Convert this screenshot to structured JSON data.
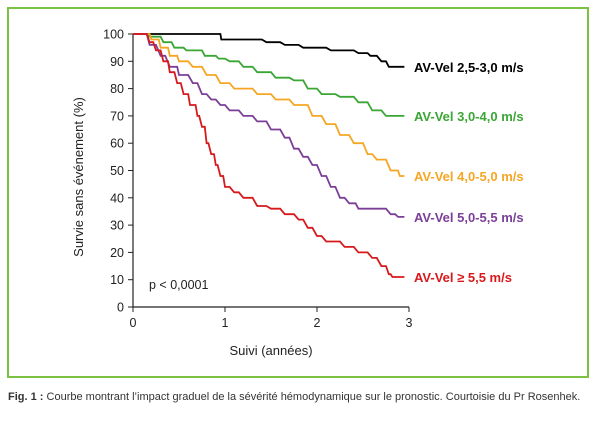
{
  "chart_data": {
    "type": "line",
    "step": true,
    "title": "",
    "xlabel": "Suivi (années)",
    "ylabel": "Survie sans événement (%)",
    "xlim": [
      0,
      3
    ],
    "ylim": [
      0,
      100
    ],
    "xticks": [
      0,
      1,
      2,
      3
    ],
    "yticks": [
      0,
      10,
      20,
      30,
      40,
      50,
      60,
      70,
      80,
      90,
      100
    ],
    "grid": false,
    "annotation": "p < 0,0001",
    "series": [
      {
        "name": "AV-Vel 2,5-3,0 m/s",
        "color": "#000000",
        "points": [
          [
            0,
            100
          ],
          [
            0.95,
            100
          ],
          [
            0.96,
            98
          ],
          [
            1.4,
            98
          ],
          [
            1.45,
            97
          ],
          [
            1.6,
            97
          ],
          [
            1.65,
            96
          ],
          [
            1.8,
            96
          ],
          [
            1.85,
            95
          ],
          [
            2.1,
            95
          ],
          [
            2.15,
            94
          ],
          [
            2.4,
            94
          ],
          [
            2.45,
            93
          ],
          [
            2.55,
            93
          ],
          [
            2.58,
            92
          ],
          [
            2.65,
            92
          ],
          [
            2.7,
            90
          ],
          [
            2.75,
            90
          ],
          [
            2.78,
            88
          ],
          [
            2.95,
            88
          ]
        ]
      },
      {
        "name": "AV-Vel 3,0-4,0 m/s",
        "color": "#3aa635",
        "points": [
          [
            0,
            100
          ],
          [
            0.15,
            100
          ],
          [
            0.18,
            99
          ],
          [
            0.3,
            99
          ],
          [
            0.33,
            97
          ],
          [
            0.42,
            97
          ],
          [
            0.45,
            95
          ],
          [
            0.55,
            95
          ],
          [
            0.58,
            94
          ],
          [
            0.75,
            94
          ],
          [
            0.78,
            92
          ],
          [
            0.9,
            92
          ],
          [
            0.93,
            91
          ],
          [
            1.0,
            91
          ],
          [
            1.05,
            90
          ],
          [
            1.15,
            90
          ],
          [
            1.2,
            88
          ],
          [
            1.3,
            88
          ],
          [
            1.35,
            86
          ],
          [
            1.5,
            86
          ],
          [
            1.55,
            84
          ],
          [
            1.7,
            84
          ],
          [
            1.75,
            83
          ],
          [
            1.85,
            83
          ],
          [
            1.9,
            80
          ],
          [
            2.0,
            80
          ],
          [
            2.05,
            78
          ],
          [
            2.2,
            78
          ],
          [
            2.25,
            77
          ],
          [
            2.4,
            77
          ],
          [
            2.45,
            75
          ],
          [
            2.55,
            75
          ],
          [
            2.6,
            72
          ],
          [
            2.7,
            72
          ],
          [
            2.75,
            70
          ],
          [
            2.95,
            70
          ]
        ]
      },
      {
        "name": "AV-Vel 4,0-5,0 m/s",
        "color": "#f5a623",
        "points": [
          [
            0,
            100
          ],
          [
            0.18,
            100
          ],
          [
            0.2,
            98
          ],
          [
            0.28,
            98
          ],
          [
            0.3,
            95
          ],
          [
            0.38,
            95
          ],
          [
            0.4,
            92
          ],
          [
            0.48,
            92
          ],
          [
            0.5,
            90
          ],
          [
            0.6,
            90
          ],
          [
            0.65,
            88
          ],
          [
            0.75,
            88
          ],
          [
            0.8,
            85
          ],
          [
            0.9,
            85
          ],
          [
            0.95,
            82
          ],
          [
            1.05,
            82
          ],
          [
            1.1,
            80
          ],
          [
            1.3,
            80
          ],
          [
            1.35,
            78
          ],
          [
            1.5,
            78
          ],
          [
            1.55,
            76
          ],
          [
            1.7,
            76
          ],
          [
            1.75,
            74
          ],
          [
            1.9,
            74
          ],
          [
            1.95,
            70
          ],
          [
            2.05,
            70
          ],
          [
            2.1,
            67
          ],
          [
            2.2,
            67
          ],
          [
            2.25,
            63
          ],
          [
            2.35,
            63
          ],
          [
            2.4,
            60
          ],
          [
            2.5,
            60
          ],
          [
            2.55,
            56
          ],
          [
            2.6,
            56
          ],
          [
            2.65,
            54
          ],
          [
            2.75,
            54
          ],
          [
            2.8,
            50
          ],
          [
            2.88,
            50
          ],
          [
            2.9,
            48
          ],
          [
            2.95,
            48
          ]
        ]
      },
      {
        "name": "AV-Vel 5,0-5,5 m/s",
        "color": "#7b3f98",
        "points": [
          [
            0,
            100
          ],
          [
            0.15,
            100
          ],
          [
            0.18,
            96
          ],
          [
            0.25,
            96
          ],
          [
            0.3,
            92
          ],
          [
            0.35,
            92
          ],
          [
            0.4,
            88
          ],
          [
            0.48,
            88
          ],
          [
            0.5,
            85
          ],
          [
            0.6,
            85
          ],
          [
            0.65,
            82
          ],
          [
            0.7,
            82
          ],
          [
            0.75,
            78
          ],
          [
            0.8,
            78
          ],
          [
            0.85,
            76
          ],
          [
            0.9,
            76
          ],
          [
            0.95,
            74
          ],
          [
            1.0,
            74
          ],
          [
            1.05,
            72
          ],
          [
            1.15,
            72
          ],
          [
            1.2,
            70
          ],
          [
            1.3,
            70
          ],
          [
            1.35,
            68
          ],
          [
            1.45,
            68
          ],
          [
            1.5,
            65
          ],
          [
            1.6,
            65
          ],
          [
            1.65,
            62
          ],
          [
            1.7,
            62
          ],
          [
            1.75,
            58
          ],
          [
            1.8,
            58
          ],
          [
            1.85,
            55
          ],
          [
            1.9,
            55
          ],
          [
            1.95,
            52
          ],
          [
            2.0,
            52
          ],
          [
            2.05,
            48
          ],
          [
            2.1,
            48
          ],
          [
            2.15,
            44
          ],
          [
            2.2,
            44
          ],
          [
            2.25,
            40
          ],
          [
            2.3,
            40
          ],
          [
            2.35,
            38
          ],
          [
            2.42,
            38
          ],
          [
            2.45,
            36
          ],
          [
            2.75,
            36
          ],
          [
            2.8,
            34
          ],
          [
            2.85,
            34
          ],
          [
            2.88,
            33
          ],
          [
            2.95,
            33
          ]
        ]
      },
      {
        "name": "AV-Vel ≥ 5,5 m/s",
        "color": "#d7191c",
        "points": [
          [
            0,
            100
          ],
          [
            0.15,
            100
          ],
          [
            0.18,
            97
          ],
          [
            0.22,
            97
          ],
          [
            0.25,
            94
          ],
          [
            0.3,
            94
          ],
          [
            0.33,
            90
          ],
          [
            0.38,
            90
          ],
          [
            0.4,
            86
          ],
          [
            0.45,
            86
          ],
          [
            0.48,
            82
          ],
          [
            0.52,
            82
          ],
          [
            0.55,
            78
          ],
          [
            0.6,
            78
          ],
          [
            0.62,
            74
          ],
          [
            0.68,
            74
          ],
          [
            0.7,
            70
          ],
          [
            0.72,
            70
          ],
          [
            0.75,
            66
          ],
          [
            0.78,
            66
          ],
          [
            0.8,
            60
          ],
          [
            0.82,
            60
          ],
          [
            0.85,
            56
          ],
          [
            0.88,
            56
          ],
          [
            0.9,
            52
          ],
          [
            0.92,
            52
          ],
          [
            0.95,
            48
          ],
          [
            0.98,
            48
          ],
          [
            1.0,
            44
          ],
          [
            1.05,
            44
          ],
          [
            1.1,
            42
          ],
          [
            1.15,
            42
          ],
          [
            1.2,
            40
          ],
          [
            1.3,
            40
          ],
          [
            1.35,
            37
          ],
          [
            1.45,
            37
          ],
          [
            1.5,
            36
          ],
          [
            1.6,
            36
          ],
          [
            1.65,
            34
          ],
          [
            1.75,
            34
          ],
          [
            1.8,
            32
          ],
          [
            1.85,
            32
          ],
          [
            1.9,
            29
          ],
          [
            1.95,
            29
          ],
          [
            2.0,
            26
          ],
          [
            2.05,
            26
          ],
          [
            2.1,
            24
          ],
          [
            2.25,
            24
          ],
          [
            2.3,
            22
          ],
          [
            2.4,
            22
          ],
          [
            2.45,
            20
          ],
          [
            2.55,
            20
          ],
          [
            2.6,
            18
          ],
          [
            2.65,
            18
          ],
          [
            2.7,
            15
          ],
          [
            2.75,
            15
          ],
          [
            2.78,
            12
          ],
          [
            2.8,
            12
          ],
          [
            2.82,
            11
          ],
          [
            2.95,
            11
          ]
        ]
      }
    ]
  },
  "caption": {
    "label": "Fig. 1 :",
    "text": "Courbe montrant l’impact graduel de la sévérité hémodynamique sur le pronostic. Courtoisie du Pr Rosenhek."
  }
}
